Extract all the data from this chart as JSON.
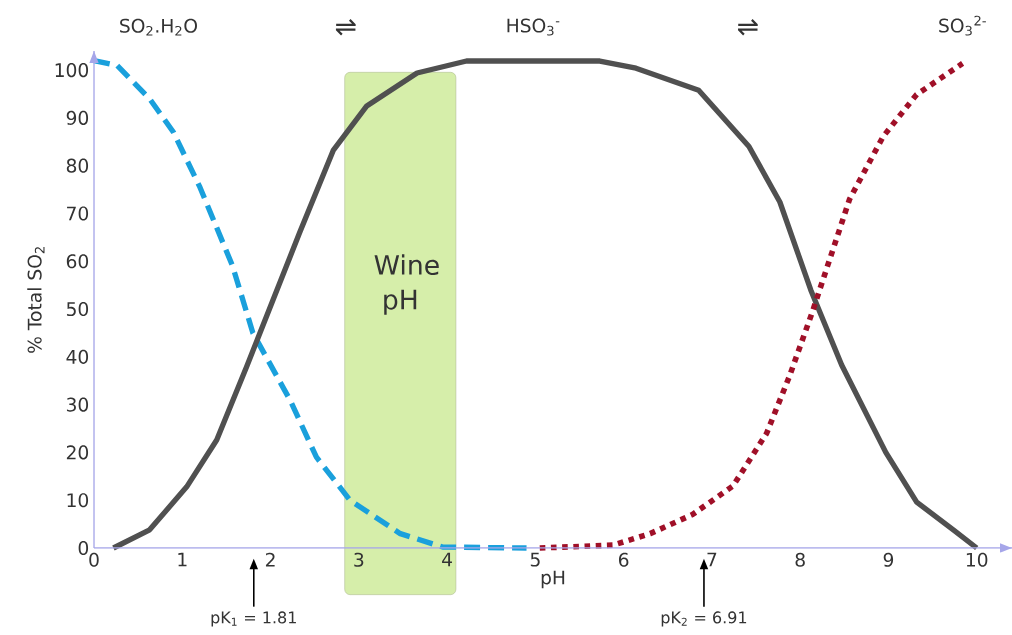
{
  "chart_data": {
    "type": "line",
    "xlabel": "pH",
    "ylabel": "% Total SO$_{2}$",
    "xlim": [
      0,
      10.4
    ],
    "ylim": [
      0,
      104
    ],
    "xticks": [
      0,
      1,
      2,
      3,
      4,
      5,
      6,
      7,
      8,
      9,
      10
    ],
    "yticks": [
      0,
      10,
      20,
      30,
      40,
      50,
      60,
      70,
      80,
      90,
      100
    ],
    "series": [
      {
        "name": "SO$_{2}$.H$_{2}$O",
        "color": "#1aa0dc",
        "line_style": "dashed",
        "x": [
          0,
          0.26,
          0.63,
          0.9,
          1.2,
          1.57,
          1.8,
          2.22,
          2.52,
          2.9,
          3.47,
          3.95,
          4.9
        ],
        "values": [
          102,
          101,
          94,
          87,
          75.5,
          59,
          45,
          31,
          19,
          10,
          3,
          0.2,
          0
        ]
      },
      {
        "name": "HSO$_{3}$$^{-}$",
        "color": "#505050",
        "line_style": "solid",
        "x": [
          0.22,
          0.63,
          1.05,
          1.39,
          1.73,
          2.03,
          2.33,
          2.71,
          3.09,
          3.66,
          4.22,
          5.73,
          6.14,
          6.85,
          7.42,
          7.77,
          8.12,
          8.47,
          8.97,
          9.32,
          9.75,
          10
        ],
        "values": [
          0,
          3.8,
          12.8,
          22.6,
          38,
          52,
          66,
          83.2,
          92.5,
          99.4,
          101.9,
          101.9,
          100.4,
          95.8,
          84,
          72.4,
          54,
          38.3,
          20,
          9.6,
          3.6,
          0
        ]
      },
      {
        "name": "SO$_{3}$$^{2-}$",
        "color": "#a01028",
        "line_style": "dotted",
        "x": [
          5.05,
          5.88,
          6.3,
          6.78,
          7.24,
          7.62,
          7.88,
          8.14,
          8.56,
          8.94,
          9.32,
          9.84
        ],
        "values": [
          0,
          0.6,
          3,
          7,
          13,
          24,
          36,
          49.5,
          73,
          86.1,
          94.9,
          101.4
        ]
      }
    ],
    "bands": [
      {
        "axis": "x",
        "from": 2.84,
        "to": 4.1,
        "label": "Wine pH",
        "color": "#d6eeaa"
      }
    ],
    "ref_lines": [
      {
        "axis": "x",
        "value": 1.81,
        "label": "pK$_{1}$ = 1.81"
      },
      {
        "axis": "x",
        "value": 6.91,
        "label": "pK$_{2}$ = 6.91"
      }
    ],
    "annotations": [
      "⇌",
      "⇌"
    ]
  }
}
